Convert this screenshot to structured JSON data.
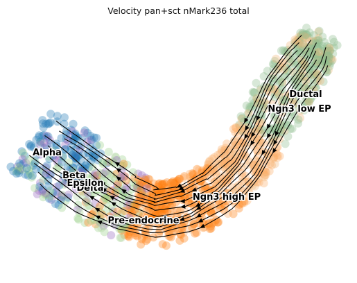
{
  "chart_data": {
    "type": "scatter",
    "subtype": "rna-velocity-stream-embedding",
    "title": "Velocity pan+sct nMark236 total",
    "xlabel": "",
    "ylabel": "",
    "axes_visible": false,
    "grid": false,
    "legend": "on-data cluster labels",
    "clusters": [
      {
        "name": "Ductal",
        "color": "#8fbc8f"
      },
      {
        "name": "Ngn3 low EP",
        "color": "#f2b77a"
      },
      {
        "name": "Ngn3 high EP",
        "color": "#fdae6b"
      },
      {
        "name": "Pre-endocrine",
        "color": "#ff7f0e"
      },
      {
        "name": "Beta",
        "color": "#9bd089"
      },
      {
        "name": "Alpha",
        "color": "#1f77b4"
      },
      {
        "name": "Delta",
        "color": "#b6d7a8"
      },
      {
        "name": "Epsilon",
        "color": "#9467bd"
      }
    ],
    "stream_color": "#000000"
  }
}
